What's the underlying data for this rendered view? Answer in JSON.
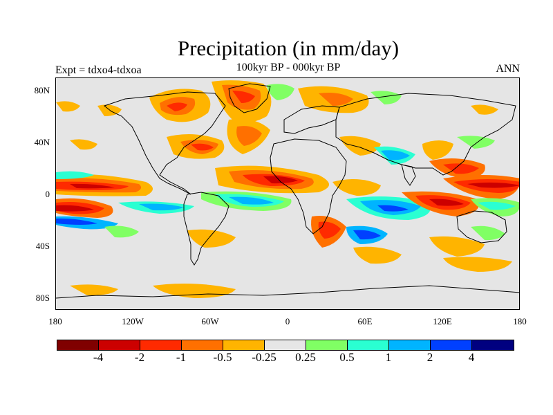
{
  "title": "Precipitation (in mm/day)",
  "subtitle": "100kyr BP - 000kyr BP",
  "left_label": "Expt = tdxo4-tdxoa",
  "right_label": "ANN",
  "lat_ticks": [
    "80N",
    "40N",
    "0",
    "40S",
    "80S"
  ],
  "lon_ticks": [
    "180",
    "120W",
    "60W",
    "0",
    "60E",
    "120E",
    "180"
  ],
  "colorbar": {
    "colors": [
      "#800000",
      "#cc0000",
      "#ff2a00",
      "#ff7000",
      "#ffb400",
      "#e6e6e6",
      "#80ff64",
      "#2affd2",
      "#00b4ff",
      "#0040ff",
      "#000080"
    ],
    "labels": [
      "-4",
      "-2",
      "-1",
      "-0.5",
      "-0.25",
      "0.25",
      "0.5",
      "1",
      "2",
      "4"
    ]
  }
}
